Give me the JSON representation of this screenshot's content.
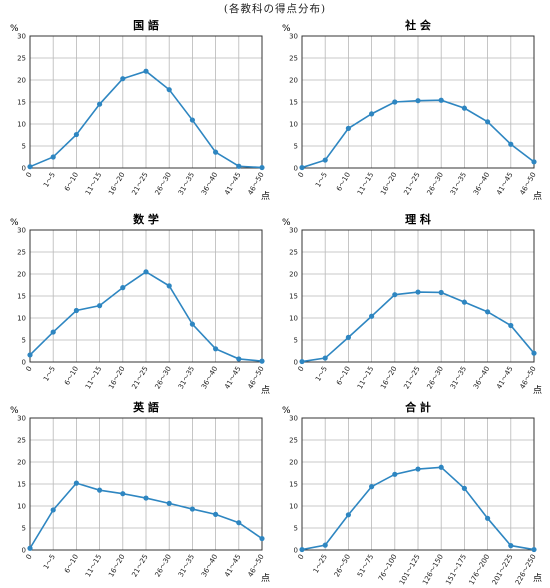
{
  "page_title": "(各教科の得点分布)",
  "colors": {
    "line": "#2e86c1",
    "grid": "#b8b8b8",
    "frame": "#333333"
  },
  "chart_data": [
    {
      "type": "line",
      "title": "国 語",
      "ylabel": "%",
      "xlabel": "点",
      "ylim": [
        0,
        30
      ],
      "yticks": [
        "0",
        "5",
        "10",
        "15",
        "20",
        "25",
        "30"
      ],
      "categories": [
        "0",
        "1～5",
        "6～10",
        "11～15",
        "16～20",
        "21～25",
        "26～30",
        "31～35",
        "36～40",
        "41～45",
        "46～50"
      ],
      "values": [
        0.3,
        2.5,
        7.6,
        14.5,
        20.3,
        22.0,
        17.8,
        10.9,
        3.6,
        0.4,
        0.1
      ],
      "grid": true
    },
    {
      "type": "line",
      "title": "社 会",
      "ylabel": "%",
      "xlabel": "点",
      "ylim": [
        0,
        30
      ],
      "yticks": [
        "0",
        "5",
        "10",
        "15",
        "20",
        "25",
        "30"
      ],
      "categories": [
        "0",
        "1～5",
        "6～10",
        "11～15",
        "16～20",
        "21～25",
        "26～30",
        "31～35",
        "36～40",
        "41～45",
        "46～50"
      ],
      "values": [
        0.1,
        1.8,
        9.0,
        12.3,
        15.0,
        15.3,
        15.4,
        13.6,
        10.5,
        5.4,
        1.4
      ],
      "grid": true
    },
    {
      "type": "line",
      "title": "数 学",
      "ylabel": "%",
      "xlabel": "点",
      "ylim": [
        0,
        30
      ],
      "yticks": [
        "0",
        "5",
        "10",
        "15",
        "20",
        "25",
        "30"
      ],
      "categories": [
        "0",
        "1～5",
        "6～10",
        "11～15",
        "16～20",
        "21～25",
        "26～30",
        "31～35",
        "36～40",
        "41～45",
        "46～50"
      ],
      "values": [
        1.6,
        6.8,
        11.7,
        12.8,
        16.9,
        20.5,
        17.3,
        8.6,
        3.0,
        0.7,
        0.2
      ],
      "grid": true
    },
    {
      "type": "line",
      "title": "理 科",
      "ylabel": "%",
      "xlabel": "点",
      "ylim": [
        0,
        30
      ],
      "yticks": [
        "0",
        "5",
        "10",
        "15",
        "20",
        "25",
        "30"
      ],
      "categories": [
        "0",
        "1～5",
        "6～10",
        "11～15",
        "16～20",
        "21～25",
        "26～30",
        "31～35",
        "36～40",
        "41～45",
        "46～50"
      ],
      "values": [
        0.1,
        0.9,
        5.6,
        10.4,
        15.3,
        15.9,
        15.8,
        13.6,
        11.4,
        8.3,
        2.0
      ],
      "grid": true
    },
    {
      "type": "line",
      "title": "英 語",
      "ylabel": "%",
      "xlabel": "点",
      "ylim": [
        0,
        30
      ],
      "yticks": [
        "0",
        "5",
        "10",
        "15",
        "20",
        "25",
        "30"
      ],
      "categories": [
        "0",
        "1～5",
        "6～10",
        "11～15",
        "16～20",
        "21～25",
        "26～30",
        "31～35",
        "36～40",
        "41～45",
        "46～50"
      ],
      "values": [
        0.4,
        9.1,
        15.2,
        13.6,
        12.8,
        11.8,
        10.6,
        9.3,
        8.1,
        6.2,
        2.6
      ],
      "grid": true
    },
    {
      "type": "line",
      "title": "合 計",
      "ylabel": "%",
      "xlabel": "点",
      "ylim": [
        0,
        30
      ],
      "yticks": [
        "0",
        "5",
        "10",
        "15",
        "20",
        "25",
        "30"
      ],
      "categories": [
        "0",
        "1～25",
        "26～50",
        "51～75",
        "76～100",
        "101～125",
        "126～150",
        "151～175",
        "176～200",
        "201～225",
        "226～250"
      ],
      "values": [
        0.1,
        1.1,
        8.0,
        14.4,
        17.2,
        18.4,
        18.8,
        14.0,
        7.2,
        1.0,
        0.1
      ],
      "grid": true
    }
  ]
}
